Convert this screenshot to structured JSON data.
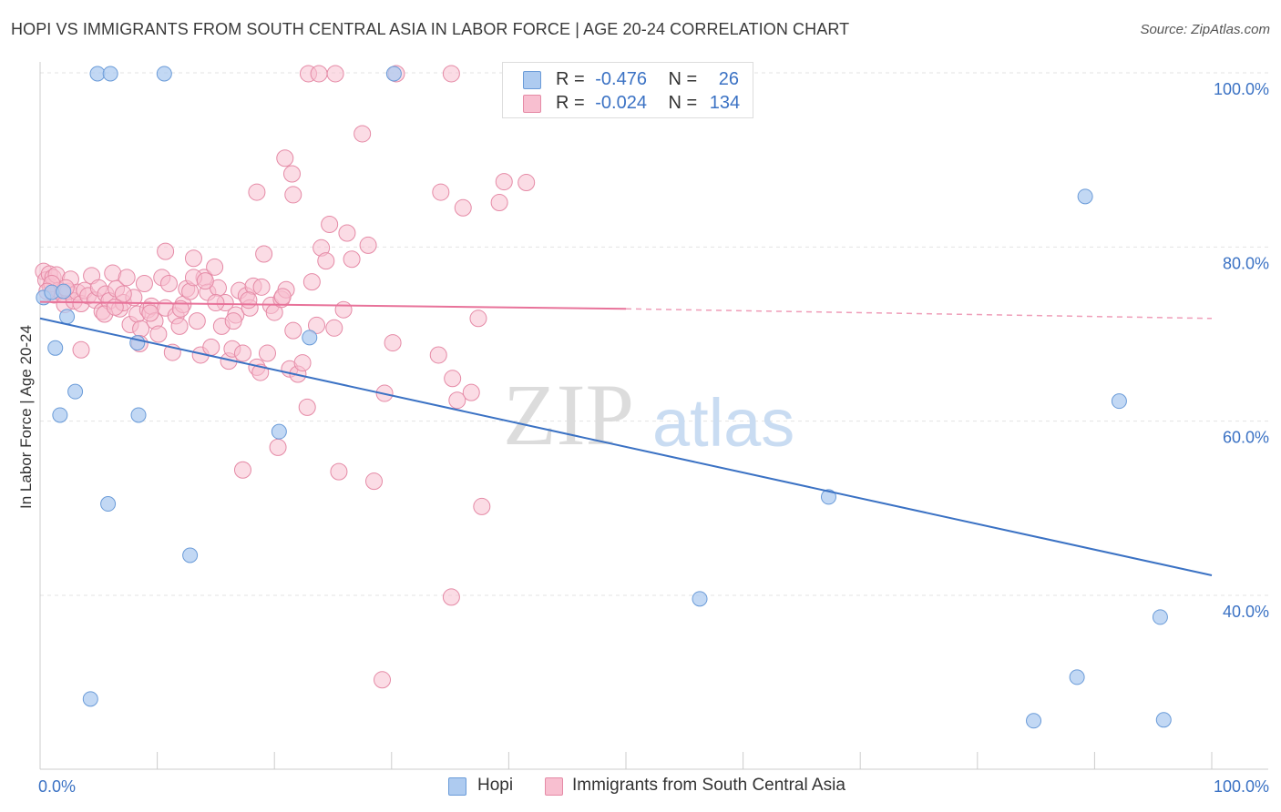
{
  "title": "HOPI VS IMMIGRANTS FROM SOUTH CENTRAL ASIA IN LABOR FORCE | AGE 20-24 CORRELATION CHART",
  "source": "Source: ZipAtlas.com",
  "watermark": {
    "zip": "ZIP",
    "atlas": "atlas"
  },
  "legend": {
    "rows": [
      {
        "r_label": "R =",
        "r_value": "-0.476",
        "n_label": "N =",
        "n_value": "26",
        "color": "#aecbf0",
        "border": "#6a9bd8"
      },
      {
        "r_label": "R =",
        "r_value": "-0.024",
        "n_label": "N =",
        "n_value": "134",
        "color": "#f8bfd0",
        "border": "#e58aa6"
      }
    ]
  },
  "bottom_legend": [
    {
      "label": "Hopi",
      "color": "#aecbf0",
      "border": "#6a9bd8"
    },
    {
      "label": "Immigrants from South Central Asia",
      "color": "#f8bfd0",
      "border": "#e58aa6"
    }
  ],
  "chart_data": {
    "type": "scatter",
    "title": "HOPI VS IMMIGRANTS FROM SOUTH CENTRAL ASIA IN LABOR FORCE | AGE 20-24 CORRELATION CHART",
    "xlabel": "",
    "ylabel": "In Labor Force | Age 20-24",
    "xlim": [
      0,
      100
    ],
    "ylim": [
      18,
      100
    ],
    "x_tick_labels": [
      "0.0%",
      "100.0%"
    ],
    "y_ticks": [
      40,
      60,
      80,
      100
    ],
    "y_tick_labels": [
      "40.0%",
      "60.0%",
      "80.0%",
      "100.0%"
    ],
    "grid": true,
    "colors": {
      "hopi": "#3b72c4",
      "hopi_fill": "#aecbf0",
      "imm": "#e8739a",
      "imm_fill": "#f8bfd0",
      "axis_text": "#3b72c4"
    },
    "series": [
      {
        "name": "Hopi",
        "points": [
          [
            0.3,
            74.2
          ],
          [
            1.0,
            74.8
          ],
          [
            2.3,
            72.0
          ],
          [
            1.3,
            68.4
          ],
          [
            3.0,
            63.4
          ],
          [
            1.7,
            60.7
          ],
          [
            4.9,
            99.9
          ],
          [
            6.0,
            99.9
          ],
          [
            10.6,
            99.9
          ],
          [
            30.2,
            99.9
          ],
          [
            8.3,
            69.0
          ],
          [
            8.4,
            60.7
          ],
          [
            5.8,
            50.5
          ],
          [
            12.8,
            44.6
          ],
          [
            20.4,
            58.8
          ],
          [
            23.0,
            69.6
          ],
          [
            4.3,
            28.1
          ],
          [
            67.3,
            51.3
          ],
          [
            56.3,
            39.6
          ],
          [
            89.2,
            85.8
          ],
          [
            92.1,
            62.3
          ],
          [
            95.6,
            37.5
          ],
          [
            88.5,
            30.6
          ],
          [
            84.8,
            25.6
          ],
          [
            95.9,
            25.7
          ],
          [
            2.0,
            74.9
          ]
        ],
        "trend": [
          [
            0,
            71.8
          ],
          [
            100,
            42.3
          ]
        ]
      },
      {
        "name": "Immigrants from South Central Asia",
        "points": [
          [
            0.3,
            77.2
          ],
          [
            0.5,
            76.2
          ],
          [
            0.8,
            76.9
          ],
          [
            0.9,
            75.4
          ],
          [
            1.1,
            76.5
          ],
          [
            1.2,
            74.5
          ],
          [
            1.4,
            76.8
          ],
          [
            1.6,
            75.0
          ],
          [
            1.9,
            74.6
          ],
          [
            2.1,
            73.4
          ],
          [
            2.4,
            74.9
          ],
          [
            2.6,
            76.3
          ],
          [
            2.9,
            73.8
          ],
          [
            3.2,
            74.8
          ],
          [
            3.5,
            73.5
          ],
          [
            3.8,
            75.0
          ],
          [
            4.1,
            74.4
          ],
          [
            4.4,
            76.7
          ],
          [
            4.7,
            73.9
          ],
          [
            5.0,
            75.3
          ],
          [
            5.3,
            72.6
          ],
          [
            5.6,
            74.6
          ],
          [
            5.9,
            73.8
          ],
          [
            6.2,
            77.0
          ],
          [
            6.5,
            75.2
          ],
          [
            6.8,
            72.9
          ],
          [
            7.1,
            73.6
          ],
          [
            7.4,
            76.5
          ],
          [
            7.7,
            71.1
          ],
          [
            8.0,
            74.2
          ],
          [
            8.3,
            72.3
          ],
          [
            8.6,
            70.6
          ],
          [
            8.9,
            75.8
          ],
          [
            9.2,
            72.8
          ],
          [
            9.5,
            73.2
          ],
          [
            9.8,
            71.5
          ],
          [
            10.1,
            70.0
          ],
          [
            10.4,
            76.5
          ],
          [
            10.7,
            73.0
          ],
          [
            11.0,
            75.8
          ],
          [
            11.3,
            67.9
          ],
          [
            11.6,
            72.1
          ],
          [
            11.9,
            70.9
          ],
          [
            12.2,
            73.4
          ],
          [
            12.5,
            75.2
          ],
          [
            12.8,
            74.9
          ],
          [
            13.1,
            78.7
          ],
          [
            13.4,
            71.5
          ],
          [
            13.7,
            67.6
          ],
          [
            14.0,
            76.5
          ],
          [
            14.3,
            74.8
          ],
          [
            14.6,
            68.5
          ],
          [
            14.9,
            77.7
          ],
          [
            15.2,
            75.3
          ],
          [
            15.5,
            70.9
          ],
          [
            15.8,
            73.6
          ],
          [
            16.1,
            66.9
          ],
          [
            16.4,
            68.3
          ],
          [
            16.7,
            72.2
          ],
          [
            17.0,
            75.0
          ],
          [
            17.3,
            67.8
          ],
          [
            17.6,
            74.4
          ],
          [
            17.9,
            73.0
          ],
          [
            18.2,
            75.5
          ],
          [
            18.5,
            66.2
          ],
          [
            18.8,
            65.6
          ],
          [
            19.1,
            79.2
          ],
          [
            19.4,
            67.8
          ],
          [
            19.7,
            73.3
          ],
          [
            20.0,
            72.5
          ],
          [
            20.3,
            57.0
          ],
          [
            20.6,
            74.0
          ],
          [
            21.0,
            75.1
          ],
          [
            21.3,
            66.0
          ],
          [
            21.6,
            70.4
          ],
          [
            22.0,
            65.4
          ],
          [
            22.4,
            66.7
          ],
          [
            22.8,
            61.6
          ],
          [
            23.2,
            76.0
          ],
          [
            23.6,
            71.0
          ],
          [
            24.0,
            79.9
          ],
          [
            24.4,
            78.4
          ],
          [
            24.7,
            82.6
          ],
          [
            25.1,
            70.7
          ],
          [
            25.5,
            54.2
          ],
          [
            25.9,
            72.8
          ],
          [
            26.2,
            81.6
          ],
          [
            26.6,
            78.6
          ],
          [
            27.5,
            93.0
          ],
          [
            28.0,
            80.2
          ],
          [
            28.5,
            53.1
          ],
          [
            29.4,
            63.2
          ],
          [
            30.1,
            69.0
          ],
          [
            30.4,
            99.9
          ],
          [
            34.0,
            67.6
          ],
          [
            34.2,
            86.3
          ],
          [
            35.2,
            64.9
          ],
          [
            35.6,
            62.4
          ],
          [
            36.1,
            84.5
          ],
          [
            36.8,
            63.3
          ],
          [
            37.4,
            71.8
          ],
          [
            37.7,
            50.2
          ],
          [
            39.2,
            85.1
          ],
          [
            39.6,
            87.5
          ],
          [
            41.5,
            87.4
          ],
          [
            22.9,
            99.9
          ],
          [
            23.8,
            99.9
          ],
          [
            35.1,
            99.9
          ],
          [
            25.2,
            99.9
          ],
          [
            18.5,
            86.3
          ],
          [
            20.9,
            90.2
          ],
          [
            21.5,
            88.4
          ],
          [
            21.6,
            86.0
          ],
          [
            17.3,
            54.4
          ],
          [
            35.1,
            39.8
          ],
          [
            29.2,
            30.3
          ],
          [
            10.7,
            79.5
          ],
          [
            13.1,
            76.5
          ],
          [
            8.5,
            68.9
          ],
          [
            3.5,
            68.2
          ],
          [
            9.4,
            72.4
          ],
          [
            14.1,
            76.1
          ],
          [
            16.5,
            71.5
          ],
          [
            7.1,
            74.6
          ],
          [
            5.5,
            72.3
          ],
          [
            2.2,
            75.3
          ],
          [
            6.4,
            73.1
          ],
          [
            12.0,
            72.9
          ],
          [
            15.0,
            73.6
          ],
          [
            17.8,
            73.9
          ],
          [
            1.0,
            75.8
          ],
          [
            0.6,
            74.9
          ],
          [
            18.9,
            75.4
          ],
          [
            20.7,
            74.3
          ]
        ],
        "trend": [
          [
            0,
            73.7
          ],
          [
            50,
            72.9
          ]
        ],
        "trend_dashed": [
          [
            50,
            72.9
          ],
          [
            100,
            71.8
          ]
        ]
      }
    ]
  }
}
